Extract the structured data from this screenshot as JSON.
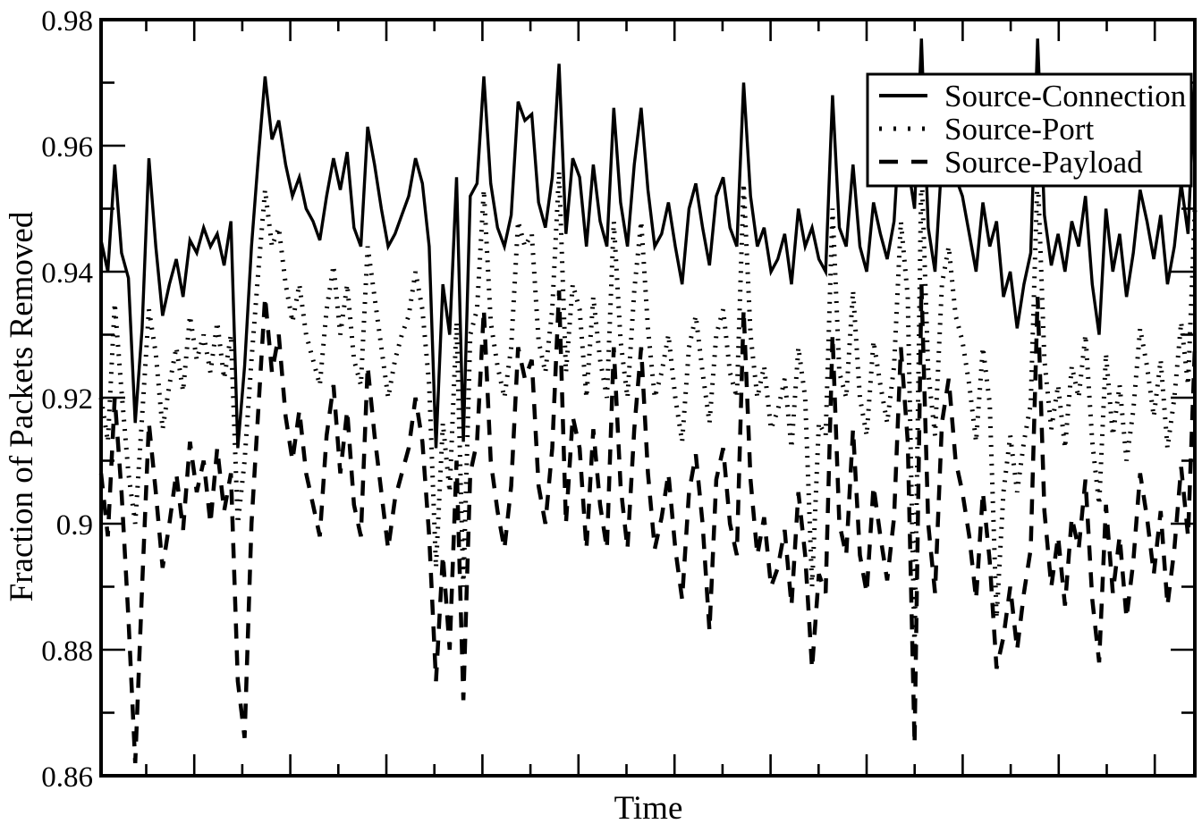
{
  "chart_data": {
    "type": "line",
    "title": "",
    "xlabel": "Time",
    "ylabel": "Fraction of Packets Removed",
    "ylim": [
      0.86,
      0.98
    ],
    "xlim_note": "x axis unlabeled; 22 alternating minor/major ticks",
    "grid": false,
    "legend_position": "top-right",
    "line_color": "#000000",
    "background_color": "#ffffff",
    "y_major_ticks": [
      0.98,
      0.96,
      0.94,
      0.92,
      0.9,
      0.88,
      0.86
    ],
    "y_tick_labels": [
      "0.98",
      "0.96",
      "0.94",
      "0.92",
      "0.9",
      "0.88",
      "0.86"
    ],
    "y_minor_step": 0.01,
    "x_tick_labels": [],
    "series": [
      {
        "name": "Source-Connection",
        "style": "solid",
        "values": [
          0.945,
          0.94,
          0.957,
          0.943,
          0.939,
          0.916,
          0.931,
          0.958,
          0.944,
          0.933,
          0.938,
          0.942,
          0.936,
          0.945,
          0.943,
          0.947,
          0.944,
          0.946,
          0.941,
          0.948,
          0.912,
          0.925,
          0.944,
          0.958,
          0.971,
          0.961,
          0.964,
          0.957,
          0.952,
          0.955,
          0.95,
          0.948,
          0.945,
          0.952,
          0.958,
          0.953,
          0.959,
          0.947,
          0.944,
          0.963,
          0.957,
          0.95,
          0.944,
          0.946,
          0.949,
          0.952,
          0.958,
          0.954,
          0.944,
          0.912,
          0.938,
          0.93,
          0.955,
          0.913,
          0.952,
          0.954,
          0.971,
          0.954,
          0.947,
          0.944,
          0.949,
          0.967,
          0.964,
          0.965,
          0.951,
          0.947,
          0.955,
          0.973,
          0.946,
          0.958,
          0.955,
          0.944,
          0.957,
          0.948,
          0.944,
          0.966,
          0.951,
          0.944,
          0.957,
          0.966,
          0.953,
          0.944,
          0.946,
          0.951,
          0.944,
          0.938,
          0.95,
          0.954,
          0.947,
          0.941,
          0.952,
          0.955,
          0.947,
          0.944,
          0.97,
          0.952,
          0.944,
          0.947,
          0.94,
          0.942,
          0.946,
          0.938,
          0.95,
          0.944,
          0.947,
          0.942,
          0.94,
          0.968,
          0.947,
          0.944,
          0.957,
          0.944,
          0.94,
          0.951,
          0.946,
          0.942,
          0.948,
          0.966,
          0.957,
          0.95,
          0.977,
          0.947,
          0.94,
          0.958,
          0.963,
          0.955,
          0.952,
          0.946,
          0.94,
          0.951,
          0.944,
          0.948,
          0.936,
          0.94,
          0.931,
          0.938,
          0.943,
          0.977,
          0.949,
          0.941,
          0.946,
          0.94,
          0.948,
          0.944,
          0.952,
          0.938,
          0.93,
          0.95,
          0.94,
          0.946,
          0.936,
          0.943,
          0.953,
          0.948,
          0.942,
          0.949,
          0.938,
          0.944,
          0.954,
          0.946,
          0.971
        ]
      },
      {
        "name": "Source-Port",
        "style": "dotted",
        "values": [
          0.92,
          0.913,
          0.935,
          0.921,
          0.908,
          0.9,
          0.917,
          0.934,
          0.927,
          0.915,
          0.922,
          0.928,
          0.921,
          0.933,
          0.926,
          0.93,
          0.924,
          0.932,
          0.923,
          0.93,
          0.9,
          0.91,
          0.926,
          0.94,
          0.953,
          0.944,
          0.947,
          0.938,
          0.932,
          0.938,
          0.93,
          0.926,
          0.922,
          0.934,
          0.941,
          0.93,
          0.938,
          0.926,
          0.922,
          0.944,
          0.936,
          0.928,
          0.92,
          0.926,
          0.93,
          0.933,
          0.94,
          0.934,
          0.922,
          0.893,
          0.916,
          0.905,
          0.932,
          0.89,
          0.93,
          0.934,
          0.953,
          0.932,
          0.925,
          0.92,
          0.928,
          0.948,
          0.944,
          0.946,
          0.929,
          0.924,
          0.934,
          0.956,
          0.924,
          0.938,
          0.934,
          0.92,
          0.936,
          0.926,
          0.92,
          0.948,
          0.929,
          0.92,
          0.937,
          0.948,
          0.931,
          0.92,
          0.924,
          0.93,
          0.92,
          0.913,
          0.928,
          0.933,
          0.924,
          0.916,
          0.93,
          0.934,
          0.924,
          0.92,
          0.954,
          0.93,
          0.92,
          0.925,
          0.915,
          0.918,
          0.923,
          0.912,
          0.928,
          0.92,
          0.89,
          0.916,
          0.914,
          0.95,
          0.924,
          0.92,
          0.937,
          0.92,
          0.914,
          0.929,
          0.922,
          0.916,
          0.925,
          0.948,
          0.936,
          0.88,
          0.957,
          0.924,
          0.914,
          0.938,
          0.944,
          0.933,
          0.929,
          0.922,
          0.913,
          0.928,
          0.919,
          0.885,
          0.905,
          0.914,
          0.905,
          0.913,
          0.919,
          0.956,
          0.926,
          0.915,
          0.922,
          0.912,
          0.925,
          0.92,
          0.93,
          0.913,
          0.903,
          0.927,
          0.914,
          0.922,
          0.91,
          0.918,
          0.931,
          0.925,
          0.917,
          0.926,
          0.912,
          0.92,
          0.932,
          0.922,
          0.95
        ]
      },
      {
        "name": "Source-Payload",
        "style": "dashed",
        "values": [
          0.908,
          0.898,
          0.92,
          0.905,
          0.885,
          0.862,
          0.89,
          0.916,
          0.905,
          0.893,
          0.9,
          0.908,
          0.899,
          0.913,
          0.905,
          0.91,
          0.9,
          0.912,
          0.902,
          0.908,
          0.875,
          0.866,
          0.9,
          0.918,
          0.936,
          0.924,
          0.93,
          0.917,
          0.91,
          0.918,
          0.908,
          0.903,
          0.898,
          0.914,
          0.922,
          0.908,
          0.918,
          0.903,
          0.898,
          0.925,
          0.914,
          0.905,
          0.896,
          0.904,
          0.908,
          0.912,
          0.92,
          0.913,
          0.898,
          0.875,
          0.895,
          0.88,
          0.91,
          0.872,
          0.908,
          0.913,
          0.934,
          0.91,
          0.902,
          0.896,
          0.906,
          0.928,
          0.923,
          0.926,
          0.906,
          0.9,
          0.912,
          0.937,
          0.9,
          0.917,
          0.912,
          0.896,
          0.915,
          0.903,
          0.896,
          0.928,
          0.906,
          0.896,
          0.915,
          0.928,
          0.908,
          0.896,
          0.901,
          0.908,
          0.896,
          0.888,
          0.905,
          0.911,
          0.9,
          0.883,
          0.907,
          0.912,
          0.9,
          0.895,
          0.934,
          0.907,
          0.895,
          0.901,
          0.89,
          0.893,
          0.899,
          0.887,
          0.905,
          0.895,
          0.877,
          0.892,
          0.889,
          0.93,
          0.9,
          0.895,
          0.915,
          0.895,
          0.889,
          0.906,
          0.898,
          0.891,
          0.901,
          0.928,
          0.913,
          0.865,
          0.938,
          0.9,
          0.889,
          0.916,
          0.923,
          0.91,
          0.905,
          0.898,
          0.888,
          0.905,
          0.894,
          0.877,
          0.882,
          0.89,
          0.88,
          0.889,
          0.896,
          0.936,
          0.902,
          0.89,
          0.898,
          0.887,
          0.901,
          0.896,
          0.907,
          0.888,
          0.878,
          0.903,
          0.889,
          0.898,
          0.885,
          0.894,
          0.908,
          0.901,
          0.892,
          0.902,
          0.887,
          0.896,
          0.909,
          0.898,
          0.928
        ]
      }
    ]
  }
}
